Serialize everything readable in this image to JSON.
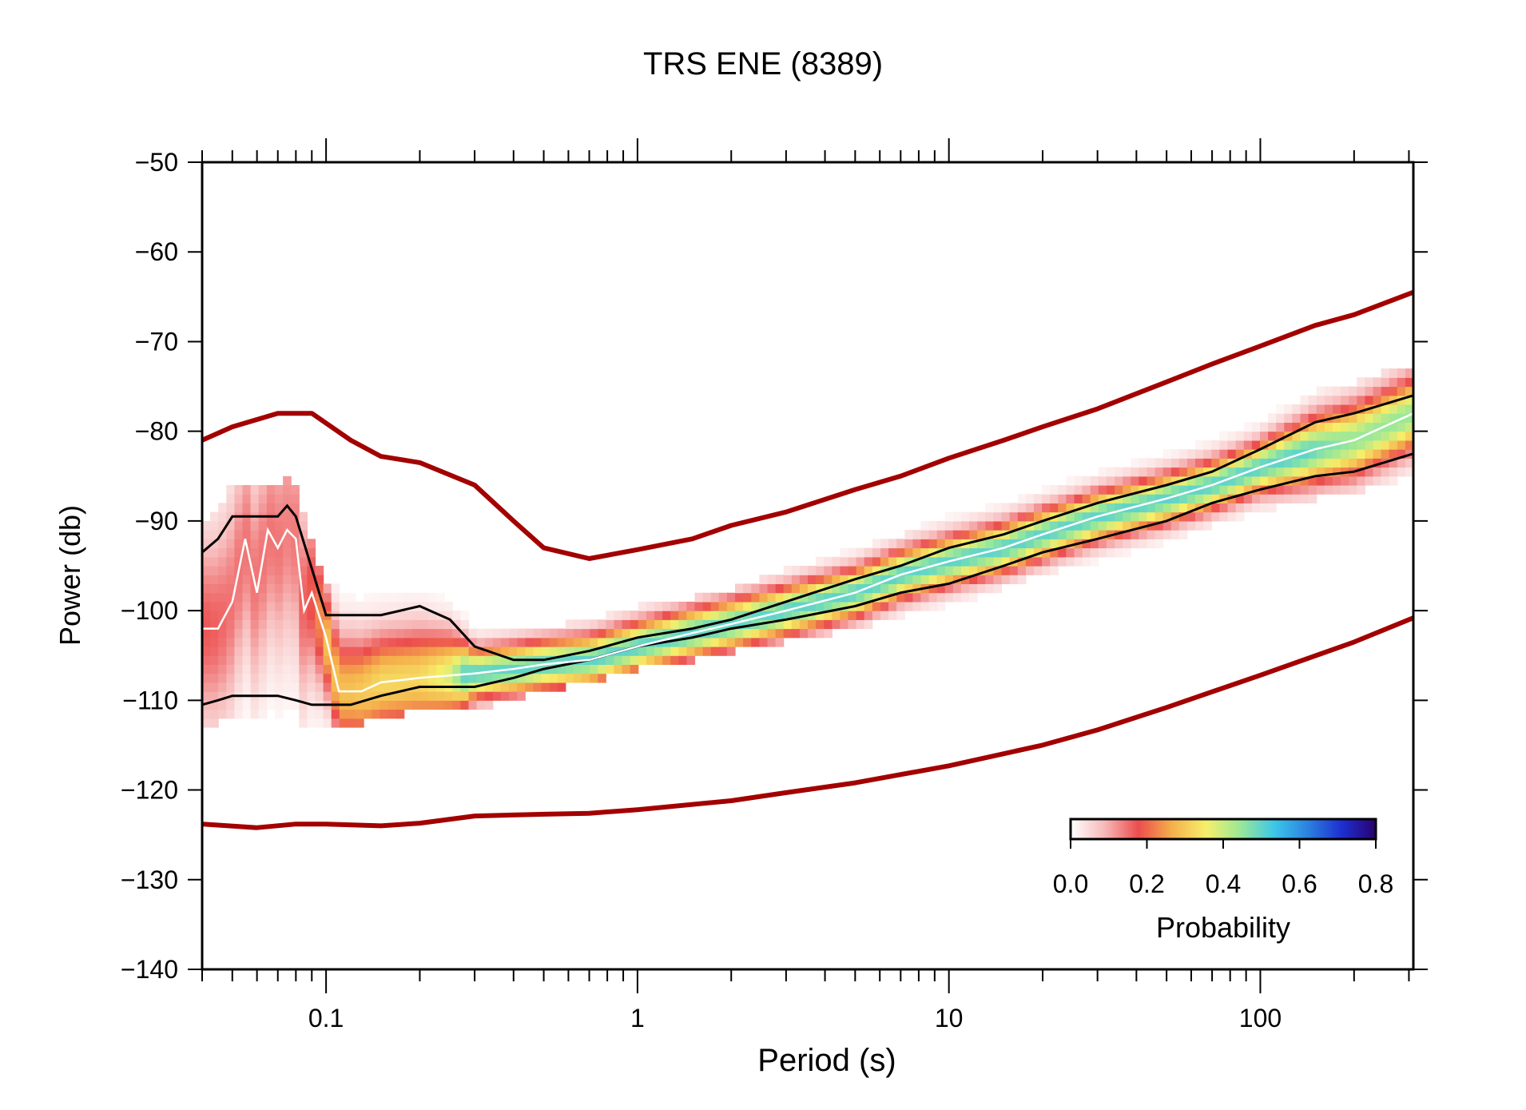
{
  "chart_data": {
    "type": "heatmap",
    "title": "TRS ENE (8389)",
    "xlabel": "Period (s)",
    "ylabel": "Power (db)",
    "x_scale": "log",
    "xlim": [
      0.04,
      310
    ],
    "ylim": [
      -140,
      -50
    ],
    "x_ticks": [
      0.1,
      1,
      10,
      100
    ],
    "x_tick_labels": [
      "0.1",
      "1",
      "10",
      "100"
    ],
    "y_ticks": [
      -50,
      -60,
      -70,
      -80,
      -90,
      -100,
      -110,
      -120,
      -130,
      -140
    ],
    "y_tick_labels": [
      "−50",
      "−60",
      "−70",
      "−80",
      "−90",
      "−100",
      "−110",
      "−120",
      "−130",
      "−140"
    ],
    "grid": false,
    "noise_model_high": {
      "x": [
        0.04,
        0.05,
        0.07,
        0.09,
        0.12,
        0.15,
        0.2,
        0.3,
        0.4,
        0.5,
        0.7,
        1,
        1.5,
        2,
        3,
        5,
        7,
        10,
        15,
        20,
        30,
        50,
        70,
        100,
        150,
        200,
        310
      ],
      "y": [
        -81,
        -79.5,
        -78,
        -78,
        -81,
        -82.8,
        -83.5,
        -86,
        -90,
        -93,
        -94.2,
        -93.2,
        -92,
        -90.5,
        -89,
        -86.5,
        -85,
        -83,
        -81,
        -79.5,
        -77.5,
        -74.5,
        -72.5,
        -70.5,
        -68.2,
        -67,
        -64.5
      ]
    },
    "noise_model_low": {
      "x": [
        0.04,
        0.06,
        0.08,
        0.1,
        0.15,
        0.2,
        0.3,
        0.5,
        0.7,
        1,
        2,
        3,
        5,
        10,
        20,
        30,
        50,
        100,
        200,
        310
      ],
      "y": [
        -123.8,
        -124.2,
        -123.8,
        -123.8,
        -124,
        -123.7,
        -122.9,
        -122.7,
        -122.6,
        -122.2,
        -121.2,
        -120.3,
        -119.2,
        -117.3,
        -115,
        -113.3,
        -110.8,
        -107.2,
        -103.5,
        -100.8
      ]
    },
    "mode": {
      "x": [
        0.04,
        0.045,
        0.05,
        0.055,
        0.06,
        0.065,
        0.07,
        0.075,
        0.08,
        0.085,
        0.09,
        0.1,
        0.11,
        0.13,
        0.15,
        0.2,
        0.3,
        0.4,
        0.5,
        0.7,
        1,
        1.5,
        2,
        3,
        5,
        7,
        10,
        15,
        20,
        30,
        50,
        70,
        100,
        150,
        200,
        310
      ],
      "y": [
        -102,
        -102,
        -99,
        -92,
        -98,
        -91,
        -93,
        -91,
        -92,
        -100,
        -98,
        -103,
        -109,
        -109,
        -108,
        -107.5,
        -107,
        -106.5,
        -106,
        -105.5,
        -104,
        -102.5,
        -101.5,
        -100,
        -98,
        -96,
        -94.5,
        -93,
        -91.5,
        -89.5,
        -87.5,
        -86,
        -84,
        -82,
        -81,
        -78
      ]
    },
    "percentile_90": {
      "x": [
        0.04,
        0.045,
        0.05,
        0.07,
        0.075,
        0.08,
        0.1,
        0.12,
        0.15,
        0.2,
        0.25,
        0.3,
        0.4,
        0.5,
        0.7,
        1,
        1.5,
        2,
        3,
        5,
        7,
        10,
        15,
        20,
        30,
        50,
        70,
        100,
        150,
        200,
        310
      ],
      "y": [
        -93.5,
        -92,
        -89.5,
        -89.5,
        -88.3,
        -89.5,
        -100.5,
        -100.5,
        -100.5,
        -99.5,
        -101,
        -104,
        -105.5,
        -105.5,
        -104.5,
        -103,
        -102,
        -101,
        -99,
        -96.5,
        -95,
        -93,
        -91.5,
        -90,
        -88,
        -86,
        -84.5,
        -82,
        -79,
        -78,
        -76
      ]
    },
    "percentile_10": {
      "x": [
        0.04,
        0.045,
        0.05,
        0.07,
        0.08,
        0.09,
        0.1,
        0.12,
        0.15,
        0.2,
        0.3,
        0.4,
        0.5,
        0.7,
        1,
        1.5,
        2,
        3,
        5,
        7,
        10,
        15,
        20,
        30,
        50,
        70,
        100,
        150,
        200,
        310
      ],
      "y": [
        -110.5,
        -110,
        -109.5,
        -109.5,
        -110,
        -110.5,
        -110.5,
        -110.5,
        -109.5,
        -108.5,
        -108.5,
        -107.5,
        -106.5,
        -105.5,
        -104,
        -103,
        -102,
        -101,
        -99.5,
        -98,
        -97,
        -95,
        -93.5,
        -92,
        -90,
        -88,
        -86.5,
        -85,
        -84.5,
        -82.5
      ]
    },
    "colorbar": {
      "label": "Probability",
      "range": [
        0,
        0.8
      ],
      "ticks": [
        "0.0",
        "0.2",
        "0.4",
        "0.6",
        "0.8"
      ],
      "colors": [
        "#ffffff",
        "#f7b9b9",
        "#ec4d4d",
        "#f5b04c",
        "#f6ef6a",
        "#9be897",
        "#3cc7e8",
        "#2c80e0",
        "#1d2fd0",
        "#2a0070"
      ]
    },
    "colors": {
      "noise_model": "#a30000",
      "percentiles": "#000000",
      "mode": "#ffffff"
    }
  }
}
